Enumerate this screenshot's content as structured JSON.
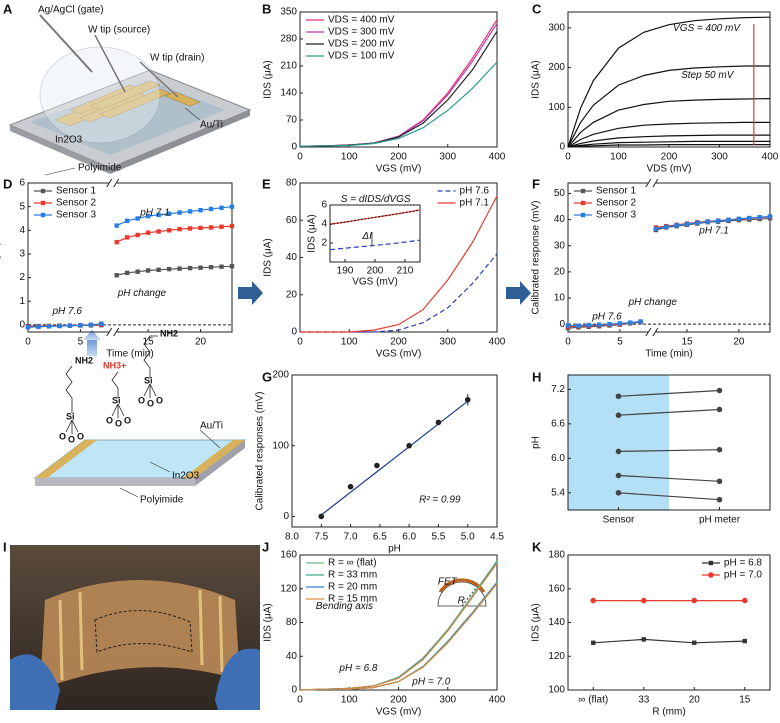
{
  "panel_labels": [
    "A",
    "B",
    "C",
    "D",
    "E",
    "F",
    "G",
    "H",
    "I",
    "J",
    "K"
  ],
  "schematic_a": {
    "labels": [
      "Ag/AgCl (gate)",
      "W tip (source)",
      "W tip (drain)",
      "Au/Ti",
      "In2O3",
      "Polyimide"
    ]
  },
  "schematic_mid": {
    "amine": "NH2",
    "ammonium": "NH3+",
    "silicon": "Si",
    "oxygen": "O",
    "labels": [
      "Au/Ti",
      "In2O3",
      "Polyimide"
    ]
  },
  "chart_data": [
    {
      "type": "line",
      "xlabel": "VGS (mV)",
      "ylabel": "IDS (μA)",
      "x": [
        0,
        50,
        100,
        150,
        200,
        250,
        300,
        350,
        400
      ],
      "xlim": [
        0,
        400
      ],
      "xticks": [
        0,
        100,
        200,
        300,
        400
      ],
      "ylim": [
        0,
        350
      ],
      "yticks": [
        0,
        70,
        140,
        210,
        280,
        350
      ],
      "legend": "upper left",
      "series": [
        {
          "name": "VDS = 400 mV",
          "color": "#e8336d",
          "values": [
            2,
            3,
            5,
            10,
            28,
            70,
            140,
            230,
            330
          ]
        },
        {
          "name": "VDS = 300 mV",
          "color": "#b13fb8",
          "values": [
            2,
            3,
            5,
            10,
            27,
            68,
            135,
            222,
            320
          ]
        },
        {
          "name": "VDS = 200 mV",
          "color": "#222222",
          "values": [
            2,
            3,
            5,
            10,
            26,
            62,
            122,
            200,
            300
          ]
        },
        {
          "name": "VDS = 100 mV",
          "color": "#2a9d8f",
          "values": [
            2,
            3,
            4,
            9,
            22,
            50,
            95,
            152,
            220
          ]
        }
      ]
    },
    {
      "type": "line",
      "xlabel": "VDS (mV)",
      "ylabel": "IDS (μA)",
      "x": [
        0,
        25,
        50,
        100,
        150,
        200,
        250,
        300,
        350,
        400
      ],
      "xlim": [
        0,
        400
      ],
      "xticks": [
        0,
        100,
        200,
        300,
        400
      ],
      "ylim": [
        0,
        340
      ],
      "yticks": [
        0,
        100,
        200,
        300
      ],
      "annotations": [
        "VGS = 400 mV",
        "Step 50 mV"
      ],
      "series": [
        {
          "color": "#111111",
          "values": [
            0,
            98,
            167,
            249,
            289,
            308,
            318,
            323,
            326,
            327
          ]
        },
        {
          "color": "#111111",
          "values": [
            0,
            62,
            105,
            156,
            180,
            193,
            199,
            202,
            204,
            204
          ]
        },
        {
          "color": "#111111",
          "values": [
            0,
            37,
            62,
            93,
            107,
            115,
            118,
            120,
            121,
            122
          ]
        },
        {
          "color": "#111111",
          "values": [
            0,
            19,
            32,
            47,
            55,
            58,
            60,
            61,
            62,
            62
          ]
        },
        {
          "color": "#111111",
          "values": [
            0,
            9,
            15,
            23,
            26,
            28,
            29,
            30,
            30,
            30
          ]
        },
        {
          "color": "#111111",
          "values": [
            0,
            4,
            7,
            11,
            12,
            13,
            14,
            14,
            14,
            14
          ]
        },
        {
          "color": "#111111",
          "values": [
            0,
            2,
            3,
            5,
            5,
            6,
            6,
            6,
            6,
            6
          ]
        }
      ]
    },
    {
      "type": "line",
      "xlabel": "Time (min)",
      "ylabel": "ΔI (μA)",
      "x": [
        0,
        1,
        2,
        3,
        4,
        5,
        6,
        7,
        12,
        13,
        14,
        15,
        16,
        17,
        18,
        19,
        20,
        21,
        22,
        23
      ],
      "xlim": [
        0,
        23
      ],
      "xbreak": [
        7.7,
        12
      ],
      "xticks": [
        0,
        5,
        15,
        20
      ],
      "ylim": [
        -0.3,
        6
      ],
      "yticks": [
        0,
        1,
        2,
        3,
        4,
        5,
        6
      ],
      "zero_line": true,
      "legend": "upper left",
      "annotations": [
        "pH 7.6",
        "pH change",
        "pH 7.1"
      ],
      "series": [
        {
          "name": "Sensor 1",
          "color": "#555555",
          "marker": "square",
          "values": [
            -0.05,
            -0.05,
            -0.04,
            -0.03,
            -0.03,
            -0.02,
            -0.02,
            -0.01,
            2.1,
            2.2,
            2.25,
            2.3,
            2.33,
            2.36,
            2.38,
            2.4,
            2.42,
            2.44,
            2.46,
            2.48
          ]
        },
        {
          "name": "Sensor 2",
          "color": "#e8392f",
          "marker": "square",
          "values": [
            -0.08,
            -0.07,
            -0.05,
            -0.04,
            -0.03,
            -0.02,
            0,
            0.02,
            3.5,
            3.7,
            3.8,
            3.9,
            3.95,
            4.0,
            4.05,
            4.08,
            4.1,
            4.12,
            4.15,
            4.18
          ]
        },
        {
          "name": "Sensor 3",
          "color": "#2a7de1",
          "marker": "square",
          "values": [
            -0.1,
            -0.08,
            -0.06,
            -0.05,
            -0.03,
            -0.02,
            0,
            0.05,
            4.2,
            4.4,
            4.5,
            4.6,
            4.65,
            4.7,
            4.75,
            4.8,
            4.85,
            4.9,
            4.95,
            5.0
          ]
        }
      ]
    },
    {
      "type": "line",
      "xlabel": "VGS (mV)",
      "ylabel": "IDS (μA)",
      "x": [
        0,
        50,
        100,
        150,
        200,
        250,
        300,
        350,
        400
      ],
      "xlim": [
        0,
        400
      ],
      "xticks": [
        0,
        100,
        200,
        300,
        400
      ],
      "ylim": [
        0,
        80
      ],
      "yticks": [
        0,
        20,
        40,
        60,
        80
      ],
      "legend": "upper right",
      "series": [
        {
          "name": "pH 7.6",
          "color": "#2b3fb0",
          "style": "dashed",
          "values": [
            0,
            0,
            0,
            0,
            1,
            5,
            13,
            26,
            42
          ]
        },
        {
          "name": "pH 7.1",
          "color": "#e8392f",
          "values": [
            0,
            0,
            0,
            1,
            4,
            12,
            28,
            48,
            73
          ]
        }
      ],
      "inset": {
        "type": "line",
        "xlabel": "VGS (mV)",
        "ylabel": "IDS (μA)",
        "x": [
          185,
          190,
          195,
          200,
          205,
          210,
          215
        ],
        "xlim": [
          185,
          215
        ],
        "xticks": [
          190,
          200,
          210
        ],
        "ylim": [
          0,
          6
        ],
        "yticks": [
          2,
          4,
          6
        ],
        "annotations": [
          "S = dIDS/dVGS",
          "ΔI"
        ],
        "series": [
          {
            "color": "#e8392f",
            "values": [
              4.0,
              4.2,
              4.45,
              4.7,
              4.95,
              5.2,
              5.5
            ]
          },
          {
            "color": "#111111",
            "style": "dotted",
            "values": [
              3.95,
              4.2,
              4.45,
              4.7,
              4.95,
              5.2,
              5.45
            ]
          },
          {
            "color": "#2b3fb0",
            "style": "dashed",
            "values": [
              1.3,
              1.45,
              1.6,
              1.75,
              1.9,
              2.1,
              2.3
            ]
          }
        ]
      }
    },
    {
      "type": "line",
      "xlabel": "Time (min)",
      "ylabel": "Calibrated response (mV)",
      "x": [
        0,
        1,
        2,
        3,
        4,
        5,
        6,
        7,
        12,
        13,
        14,
        15,
        16,
        17,
        18,
        19,
        20,
        21,
        22,
        23
      ],
      "xlim": [
        0,
        23
      ],
      "xbreak": [
        7.7,
        12
      ],
      "xticks": [
        0,
        5,
        15,
        20
      ],
      "ylim": [
        -3,
        54
      ],
      "yticks": [
        0,
        10,
        20,
        30,
        40,
        50
      ],
      "zero_line": true,
      "legend": "upper left",
      "annotations": [
        "pH 7.6",
        "pH change",
        "pH 7.1"
      ],
      "series": [
        {
          "name": "Sensor 1",
          "color": "#555555",
          "marker": "square",
          "values": [
            -1.5,
            -1.2,
            -1,
            -0.8,
            -0.5,
            -0.2,
            0.3,
            0.8,
            36,
            37,
            37.5,
            38,
            38.5,
            39,
            39.2,
            39.5,
            39.8,
            40,
            40.2,
            40.5
          ]
        },
        {
          "name": "Sensor 2",
          "color": "#e8392f",
          "marker": "square",
          "values": [
            -1,
            -0.8,
            -0.6,
            -0.4,
            -0.2,
            0,
            0.5,
            1,
            37,
            37.5,
            38,
            38.5,
            39,
            39.3,
            39.6,
            39.9,
            40.2,
            40.5,
            40.8,
            41
          ]
        },
        {
          "name": "Sensor 3",
          "color": "#2a7de1",
          "marker": "square",
          "values": [
            -0.5,
            -0.6,
            -0.3,
            -0.2,
            0,
            0.3,
            0.6,
            1,
            36.5,
            37.2,
            37.8,
            38.3,
            38.8,
            39.2,
            39.5,
            39.9,
            40.3,
            40.6,
            40.9,
            41.2
          ]
        }
      ]
    },
    {
      "type": "scatter",
      "xlabel": "pH",
      "ylabel": "Calibrated responses (mV)",
      "xlim": [
        8.0,
        4.5
      ],
      "xticks": [
        {
          "value": 8,
          "label": "8.0"
        },
        7.5,
        {
          "value": 7,
          "label": "7.0"
        },
        6.5,
        {
          "value": 6,
          "label": "6.0"
        },
        5.5,
        {
          "value": 5,
          "label": "5.0"
        },
        4.5
      ],
      "ylim": [
        -15,
        200
      ],
      "yticks": [
        0,
        100,
        200
      ],
      "annotations": [
        "R² = 0.99"
      ],
      "series": [
        {
          "color": "#1f3c88",
          "x": [
            7.5,
            5.0
          ],
          "values": [
            2,
            163
          ]
        },
        {
          "color": "#222222",
          "line": false,
          "marker": "circle",
          "x": [
            7.5,
            7.0,
            6.55,
            6.0,
            5.5,
            5.0
          ],
          "values": [
            0,
            42,
            72,
            100,
            133,
            165
          ],
          "errors": [
            0,
            0,
            0,
            0,
            3,
            8
          ]
        }
      ]
    },
    {
      "type": "paired",
      "ylabel": "pH",
      "categories": [
        "Sensor",
        "pH meter"
      ],
      "ylim": [
        5.1,
        7.45
      ],
      "yticks": [
        5.4,
        {
          "value": 6,
          "label": "6.0"
        },
        6.6,
        7.2
      ],
      "shade_color": "#b3e0f7",
      "series": [
        {
          "color": "#444444",
          "marker": "circle",
          "values": [
            7.08,
            7.18
          ]
        },
        {
          "color": "#444444",
          "marker": "circle",
          "values": [
            6.75,
            6.85
          ]
        },
        {
          "color": "#444444",
          "marker": "circle",
          "values": [
            6.12,
            6.15
          ]
        },
        {
          "color": "#444444",
          "marker": "circle",
          "values": [
            5.7,
            5.6
          ]
        },
        {
          "color": "#444444",
          "marker": "circle",
          "values": [
            5.4,
            5.28
          ]
        }
      ]
    },
    {
      "type": "line",
      "xlabel": "VGS (mV)",
      "ylabel": "IDS (μA)",
      "x": [
        0,
        50,
        100,
        150,
        200,
        250,
        300,
        350,
        400
      ],
      "xlim": [
        0,
        400
      ],
      "xticks": [
        0,
        100,
        200,
        300,
        400
      ],
      "ylim": [
        0,
        160
      ],
      "yticks": [
        0,
        40,
        80,
        120,
        160
      ],
      "legend": "upper left",
      "annotations": [
        "pH = 6.8",
        "pH = 7.0",
        "FET",
        "Bending axis",
        "R"
      ],
      "series": [
        {
          "name": "R = ∞ (flat)",
          "color": "#6cbf84",
          "values": [
            0,
            1,
            2,
            5,
            15,
            38,
            72,
            112,
            153
          ]
        },
        {
          "name": "R = 33 mm",
          "color": "#3aa68c",
          "values": [
            0,
            1,
            2,
            5,
            15,
            37,
            71,
            111,
            152
          ]
        },
        {
          "name": "R = 20 mm",
          "color": "#3d7bd6",
          "values": [
            0,
            1,
            2,
            5,
            14,
            37,
            70,
            110,
            151
          ]
        },
        {
          "name": "R = 15 mm",
          "color": "#e08a3c",
          "values": [
            0,
            1,
            2,
            5,
            14,
            36,
            70,
            110,
            150
          ]
        },
        {
          "color": "#6cbf84",
          "values": [
            0,
            1,
            1,
            3,
            10,
            28,
            58,
            92,
            128
          ]
        },
        {
          "color": "#3aa68c",
          "values": [
            0,
            1,
            1,
            3,
            10,
            28,
            57,
            91,
            127
          ]
        },
        {
          "color": "#3d7bd6",
          "values": [
            0,
            1,
            1,
            3,
            10,
            27,
            57,
            91,
            127
          ]
        },
        {
          "color": "#e08a3c",
          "values": [
            0,
            1,
            1,
            3,
            10,
            27,
            56,
            90,
            126
          ]
        }
      ]
    },
    {
      "type": "line",
      "xlabel": "R (mm)",
      "ylabel": "IDS (μA)",
      "categories": [
        "∞ (flat)",
        "33",
        "20",
        "15"
      ],
      "ylim": [
        100,
        180
      ],
      "yticks": [
        100,
        120,
        140,
        160,
        180
      ],
      "legend": "upper right",
      "series": [
        {
          "name": "pH = 6.8",
          "color": "#333333",
          "marker": "square",
          "values": [
            128,
            130,
            128,
            129
          ]
        },
        {
          "name": "pH = 7.0",
          "color": "#e8392f",
          "marker": "circle",
          "values": [
            153,
            153,
            153,
            153
          ]
        }
      ]
    }
  ]
}
